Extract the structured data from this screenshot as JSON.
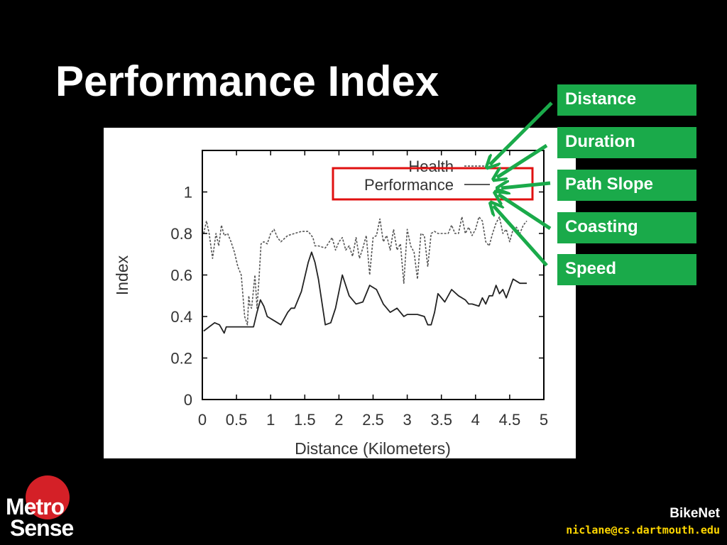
{
  "slide": {
    "title": "Performance Index",
    "factors": [
      "Distance",
      "Duration",
      "Path Slope",
      "Coasting",
      "Speed"
    ],
    "footer": {
      "project": "BikeNet",
      "email": "niclane@cs.dartmouth.edu"
    },
    "logo": {
      "line1": "Metro",
      "line2": "Sense"
    },
    "colors": {
      "factor_box": "#1aaa4a",
      "arrow": "#1aaa4a",
      "highlight_box": "#e01010",
      "email": "#ffd700"
    }
  },
  "chart_data": {
    "type": "line",
    "xlabel": "Distance (Kilometers)",
    "ylabel": "Index",
    "xlim": [
      0,
      5
    ],
    "ylim": [
      0,
      1.2
    ],
    "xticks": [
      "0",
      "0.5",
      "1",
      "1.5",
      "2",
      "2.5",
      "3",
      "3.5",
      "4",
      "4.5",
      "5"
    ],
    "yticks": [
      "0",
      "0.2",
      "0.4",
      "0.6",
      "0.8",
      "1"
    ],
    "grid": false,
    "legend": "top-right",
    "series": [
      {
        "name": "Health",
        "style": "dashed",
        "x": [
          0.02,
          0.06,
          0.1,
          0.15,
          0.2,
          0.24,
          0.28,
          0.32,
          0.37,
          0.42,
          0.47,
          0.52,
          0.57,
          0.62,
          0.66,
          0.68,
          0.7,
          0.72,
          0.74,
          0.77,
          0.8,
          0.83,
          0.86,
          0.9,
          0.95,
          1.0,
          1.05,
          1.1,
          1.15,
          1.25,
          1.35,
          1.45,
          1.55,
          1.62,
          1.65,
          1.7,
          1.8,
          1.9,
          1.95,
          2.0,
          2.05,
          2.1,
          2.15,
          2.2,
          2.25,
          2.3,
          2.35,
          2.4,
          2.45,
          2.5,
          2.55,
          2.6,
          2.65,
          2.7,
          2.75,
          2.8,
          2.85,
          2.9,
          2.95,
          3.0,
          3.05,
          3.1,
          3.15,
          3.2,
          3.25,
          3.3,
          3.35,
          3.4,
          3.45,
          3.5,
          3.55,
          3.6,
          3.65,
          3.7,
          3.75,
          3.8,
          3.85,
          3.9,
          3.95,
          4.0,
          4.05,
          4.1,
          4.15,
          4.2,
          4.25,
          4.3,
          4.35,
          4.4,
          4.45,
          4.5,
          4.55,
          4.6,
          4.65,
          4.7,
          4.75
        ],
        "y": [
          0.8,
          0.86,
          0.8,
          0.68,
          0.8,
          0.74,
          0.84,
          0.79,
          0.8,
          0.76,
          0.71,
          0.64,
          0.6,
          0.4,
          0.36,
          0.5,
          0.45,
          0.44,
          0.5,
          0.6,
          0.44,
          0.58,
          0.75,
          0.76,
          0.75,
          0.8,
          0.82,
          0.78,
          0.76,
          0.79,
          0.8,
          0.81,
          0.81,
          0.78,
          0.74,
          0.74,
          0.73,
          0.78,
          0.72,
          0.76,
          0.78,
          0.72,
          0.74,
          0.69,
          0.78,
          0.68,
          0.73,
          0.79,
          0.6,
          0.78,
          0.79,
          0.87,
          0.76,
          0.79,
          0.72,
          0.82,
          0.72,
          0.75,
          0.56,
          0.82,
          0.74,
          0.71,
          0.58,
          0.8,
          0.79,
          0.64,
          0.8,
          0.81,
          0.8,
          0.8,
          0.8,
          0.8,
          0.84,
          0.8,
          0.8,
          0.88,
          0.8,
          0.83,
          0.79,
          0.82,
          0.88,
          0.86,
          0.76,
          0.74,
          0.8,
          0.85,
          0.88,
          0.8,
          0.82,
          0.76,
          0.82,
          0.83,
          0.8,
          0.84,
          0.86
        ]
      },
      {
        "name": "Performance",
        "style": "solid",
        "x": [
          0.02,
          0.1,
          0.18,
          0.25,
          0.32,
          0.35,
          0.45,
          0.55,
          0.65,
          0.75,
          0.8,
          0.85,
          0.9,
          0.95,
          1.05,
          1.15,
          1.25,
          1.3,
          1.35,
          1.45,
          1.55,
          1.6,
          1.65,
          1.7,
          1.8,
          1.88,
          1.95,
          2.05,
          2.15,
          2.25,
          2.35,
          2.45,
          2.55,
          2.65,
          2.75,
          2.85,
          2.95,
          3.0,
          3.05,
          3.15,
          3.25,
          3.3,
          3.35,
          3.4,
          3.45,
          3.55,
          3.65,
          3.75,
          3.85,
          3.9,
          3.95,
          4.05,
          4.1,
          4.15,
          4.2,
          4.25,
          4.3,
          4.35,
          4.4,
          4.45,
          4.55,
          4.65,
          4.75
        ],
        "y": [
          0.33,
          0.35,
          0.37,
          0.36,
          0.32,
          0.35,
          0.35,
          0.35,
          0.35,
          0.35,
          0.42,
          0.48,
          0.45,
          0.4,
          0.38,
          0.36,
          0.42,
          0.44,
          0.44,
          0.52,
          0.66,
          0.71,
          0.66,
          0.58,
          0.36,
          0.37,
          0.44,
          0.6,
          0.5,
          0.46,
          0.47,
          0.55,
          0.53,
          0.46,
          0.42,
          0.44,
          0.4,
          0.41,
          0.41,
          0.41,
          0.4,
          0.36,
          0.36,
          0.42,
          0.51,
          0.47,
          0.53,
          0.5,
          0.48,
          0.46,
          0.46,
          0.45,
          0.49,
          0.46,
          0.5,
          0.5,
          0.55,
          0.51,
          0.53,
          0.49,
          0.58,
          0.56,
          0.56
        ]
      }
    ]
  }
}
